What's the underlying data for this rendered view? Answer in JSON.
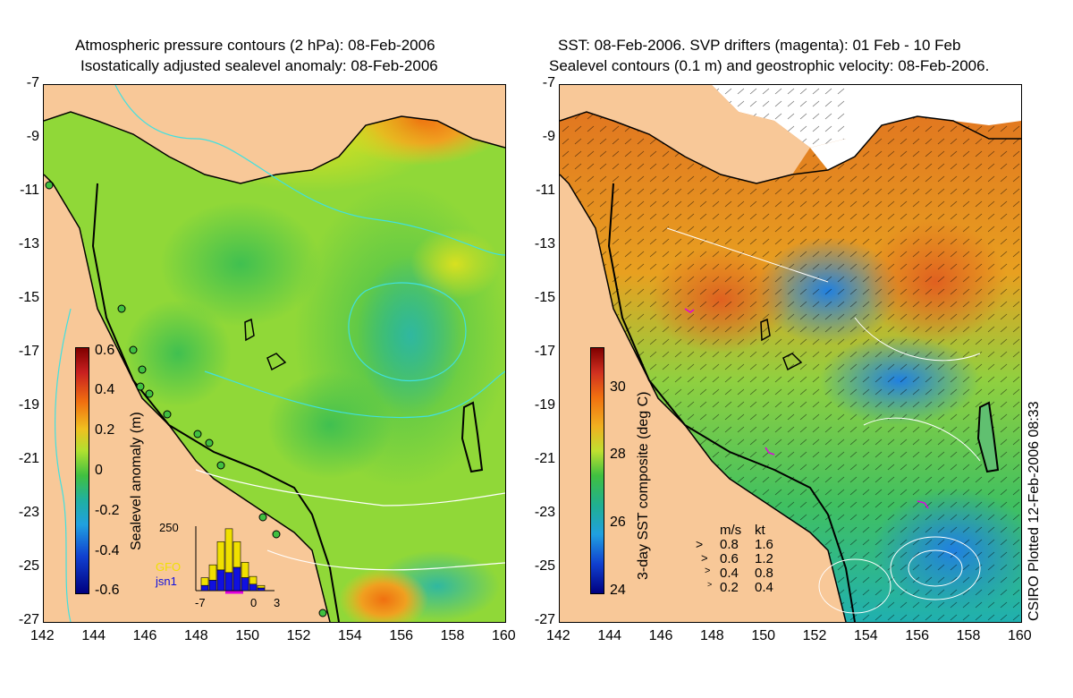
{
  "left": {
    "title_line1": "Atmospheric pressure contours (2 hPa): 08-Feb-2006",
    "title_line2": "Isostatically adjusted sealevel anomaly: 08-Feb-2006",
    "colorbar_label": "Sealevel anomaly (m)",
    "colorbar_ticks": [
      "0.6",
      "0.4",
      "0.2",
      "0",
      "-0.2",
      "-0.4",
      "-0.6"
    ],
    "inset": {
      "ymax_label": "250",
      "x_ticks": [
        "-7",
        "0",
        "3"
      ],
      "legend": [
        {
          "name": "GFO",
          "color": "#f0e000"
        },
        {
          "name": "jsn1",
          "color": "#1010e0"
        }
      ],
      "gfo_counts": [
        30,
        60,
        110,
        170,
        100,
        60,
        30,
        10
      ],
      "jsn1_counts": [
        20,
        40,
        80,
        70,
        90,
        50,
        25,
        10
      ]
    }
  },
  "right": {
    "title_line1": "SST: 08-Feb-2006. SVP drifters (magenta): 01 Feb - 10 Feb",
    "title_line2": "Sealevel contours (0.1 m) and geostrophic velocity: 08-Feb-2006.",
    "colorbar_label": "3-day SST composite (deg C)",
    "colorbar_ticks": [
      "30",
      "28",
      "26",
      "24"
    ],
    "vector_legend": {
      "header_ms": "m/s",
      "header_kt": "kt",
      "rows": [
        {
          "ms": "0.8",
          "kt": "1.6"
        },
        {
          "ms": "0.6",
          "kt": "1.2"
        },
        {
          "ms": "0.4",
          "kt": "0.8"
        },
        {
          "ms": "0.2",
          "kt": "0.4"
        }
      ]
    },
    "credit": "CSIRO Plotted 12-Feb-2006 08:33"
  },
  "axes": {
    "lat_ticks": [
      "-7",
      "-9",
      "-11",
      "-13",
      "-15",
      "-17",
      "-19",
      "-21",
      "-23",
      "-25",
      "-27"
    ],
    "lon_ticks": [
      "142",
      "144",
      "146",
      "148",
      "150",
      "152",
      "154",
      "156",
      "158",
      "160"
    ]
  },
  "colors": {
    "land": "#f8c898",
    "coast": "#000000",
    "contour_cyan": "#40e0e0",
    "contour_white": "#ffffff",
    "sst_warm": "#e07020",
    "sla_green": "#80d030",
    "drifter": "#e000e0"
  }
}
